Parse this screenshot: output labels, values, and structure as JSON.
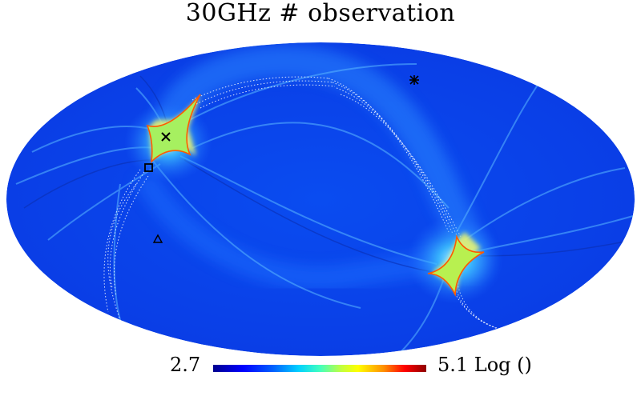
{
  "title": "30GHz # observation",
  "colorbar": {
    "min_label": "2.7",
    "max_label": "5.1 Log ()"
  },
  "projection": "mollweide",
  "colormap": [
    "#00008f",
    "#0000ff",
    "#00d0ff",
    "#40ffc0",
    "#ffff00",
    "#ff9000",
    "#ff0000",
    "#8f0000"
  ],
  "markers": [
    {
      "symbol": "asterisk-icon"
    },
    {
      "symbol": "cross-icon"
    },
    {
      "symbol": "square-icon"
    },
    {
      "symbol": "triangle-icon"
    }
  ]
}
